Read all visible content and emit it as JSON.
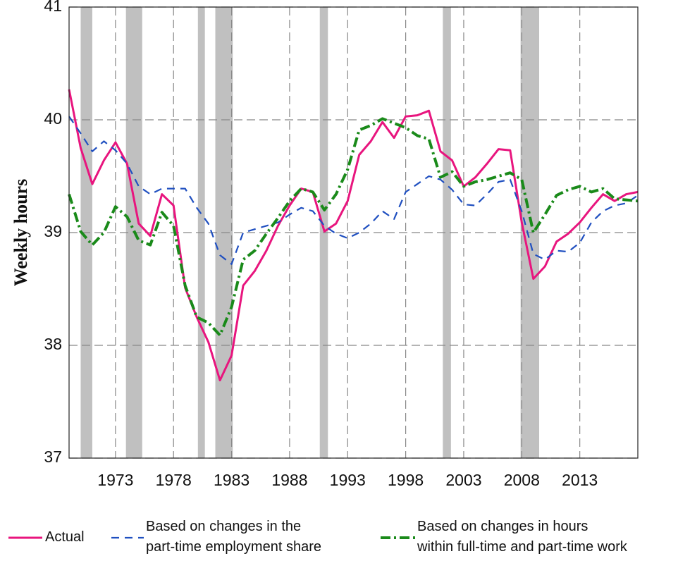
{
  "chart_data": {
    "type": "line",
    "ylabel": "Weekly hours",
    "x": [
      1969,
      1970,
      1971,
      1972,
      1973,
      1974,
      1975,
      1976,
      1977,
      1978,
      1979,
      1980,
      1981,
      1982,
      1983,
      1984,
      1985,
      1986,
      1987,
      1988,
      1989,
      1990,
      1991,
      1992,
      1993,
      1994,
      1995,
      1996,
      1997,
      1998,
      1999,
      2000,
      2001,
      2002,
      2003,
      2004,
      2005,
      2006,
      2007,
      2008,
      2009,
      2010,
      2011,
      2012,
      2013,
      2014,
      2015,
      2016,
      2017,
      2018
    ],
    "series": [
      {
        "name": "Actual",
        "color": "#e8157e",
        "style": "solid",
        "values": [
          40.27,
          39.75,
          39.43,
          39.64,
          39.8,
          39.61,
          39.08,
          38.97,
          39.34,
          39.24,
          38.51,
          38.25,
          38.03,
          37.69,
          37.91,
          38.53,
          38.66,
          38.84,
          39.06,
          39.24,
          39.39,
          39.36,
          39.01,
          39.08,
          39.28,
          39.69,
          39.81,
          39.98,
          39.84,
          40.03,
          40.04,
          40.08,
          39.72,
          39.64,
          39.41,
          39.49,
          39.61,
          39.74,
          39.73,
          39.09,
          38.59,
          38.7,
          38.92,
          38.99,
          39.09,
          39.22,
          39.34,
          39.28,
          39.34,
          39.36
        ]
      },
      {
        "name": "Based on changes in the\npart-time employment share",
        "color": "#1f4fc0",
        "style": "dashed",
        "values": [
          40.03,
          39.88,
          39.72,
          39.81,
          39.73,
          39.61,
          39.41,
          39.34,
          39.39,
          39.39,
          39.39,
          39.22,
          39.08,
          38.8,
          38.72,
          39.0,
          39.03,
          39.06,
          39.09,
          39.16,
          39.22,
          39.19,
          39.06,
          38.99,
          38.95,
          39.0,
          39.08,
          39.19,
          39.12,
          39.36,
          39.43,
          39.5,
          39.47,
          39.38,
          39.25,
          39.24,
          39.34,
          39.45,
          39.47,
          39.19,
          38.81,
          38.76,
          38.84,
          38.83,
          38.91,
          39.09,
          39.19,
          39.24,
          39.26,
          39.33
        ]
      },
      {
        "name": "Based on changes in hours\nwithin full-time and part-time work",
        "color": "#1a8a1a",
        "style": "dashdot",
        "values": [
          39.34,
          39.01,
          38.89,
          39.0,
          39.23,
          39.14,
          38.93,
          38.89,
          39.18,
          39.06,
          38.53,
          38.25,
          38.2,
          38.09,
          38.34,
          38.76,
          38.84,
          38.99,
          39.13,
          39.28,
          39.39,
          39.36,
          39.2,
          39.34,
          39.56,
          39.91,
          39.95,
          40.01,
          39.97,
          39.93,
          39.86,
          39.83,
          39.49,
          39.54,
          39.41,
          39.45,
          39.47,
          39.5,
          39.53,
          39.47,
          39.0,
          39.16,
          39.33,
          39.38,
          39.41,
          39.36,
          39.39,
          39.3,
          39.29,
          39.28
        ]
      }
    ],
    "shaded_periods": [
      [
        1970,
        1971
      ],
      [
        1973.9,
        1975.3
      ],
      [
        1980.1,
        1980.7
      ],
      [
        1981.6,
        1983.1
      ],
      [
        1990.6,
        1991.3
      ],
      [
        2001.2,
        2001.9
      ],
      [
        2007.9,
        2009.5
      ]
    ],
    "shade_color": "#c0c0c0",
    "xlim": [
      1969,
      2018
    ],
    "xticks": [
      1973,
      1978,
      1983,
      1988,
      1993,
      1998,
      2003,
      2008,
      2013
    ],
    "ylim": [
      37,
      41
    ],
    "yticks": [
      37,
      38,
      39,
      40,
      41
    ],
    "grid": true
  }
}
